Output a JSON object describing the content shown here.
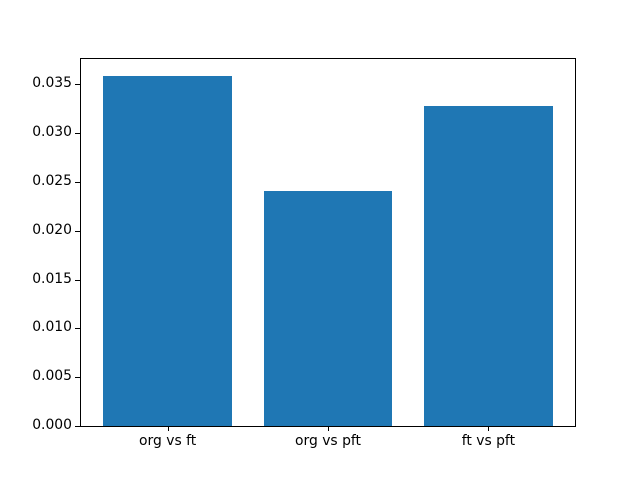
{
  "chart_data": {
    "type": "bar",
    "title": "",
    "xlabel": "",
    "ylabel": "",
    "categories": [
      "org vs ft",
      "org vs pft",
      "ft vs pft"
    ],
    "values": [
      0.0358,
      0.0241,
      0.0327
    ],
    "ylim": [
      0,
      0.03759
    ],
    "ytick_labels": [
      "0.000",
      "0.005",
      "0.010",
      "0.015",
      "0.020",
      "0.025",
      "0.030",
      "0.035"
    ],
    "bar_color": "#1f77b4",
    "spine_color": "#000000",
    "background_color": "#ffffff",
    "grid": false,
    "legend": null
  }
}
